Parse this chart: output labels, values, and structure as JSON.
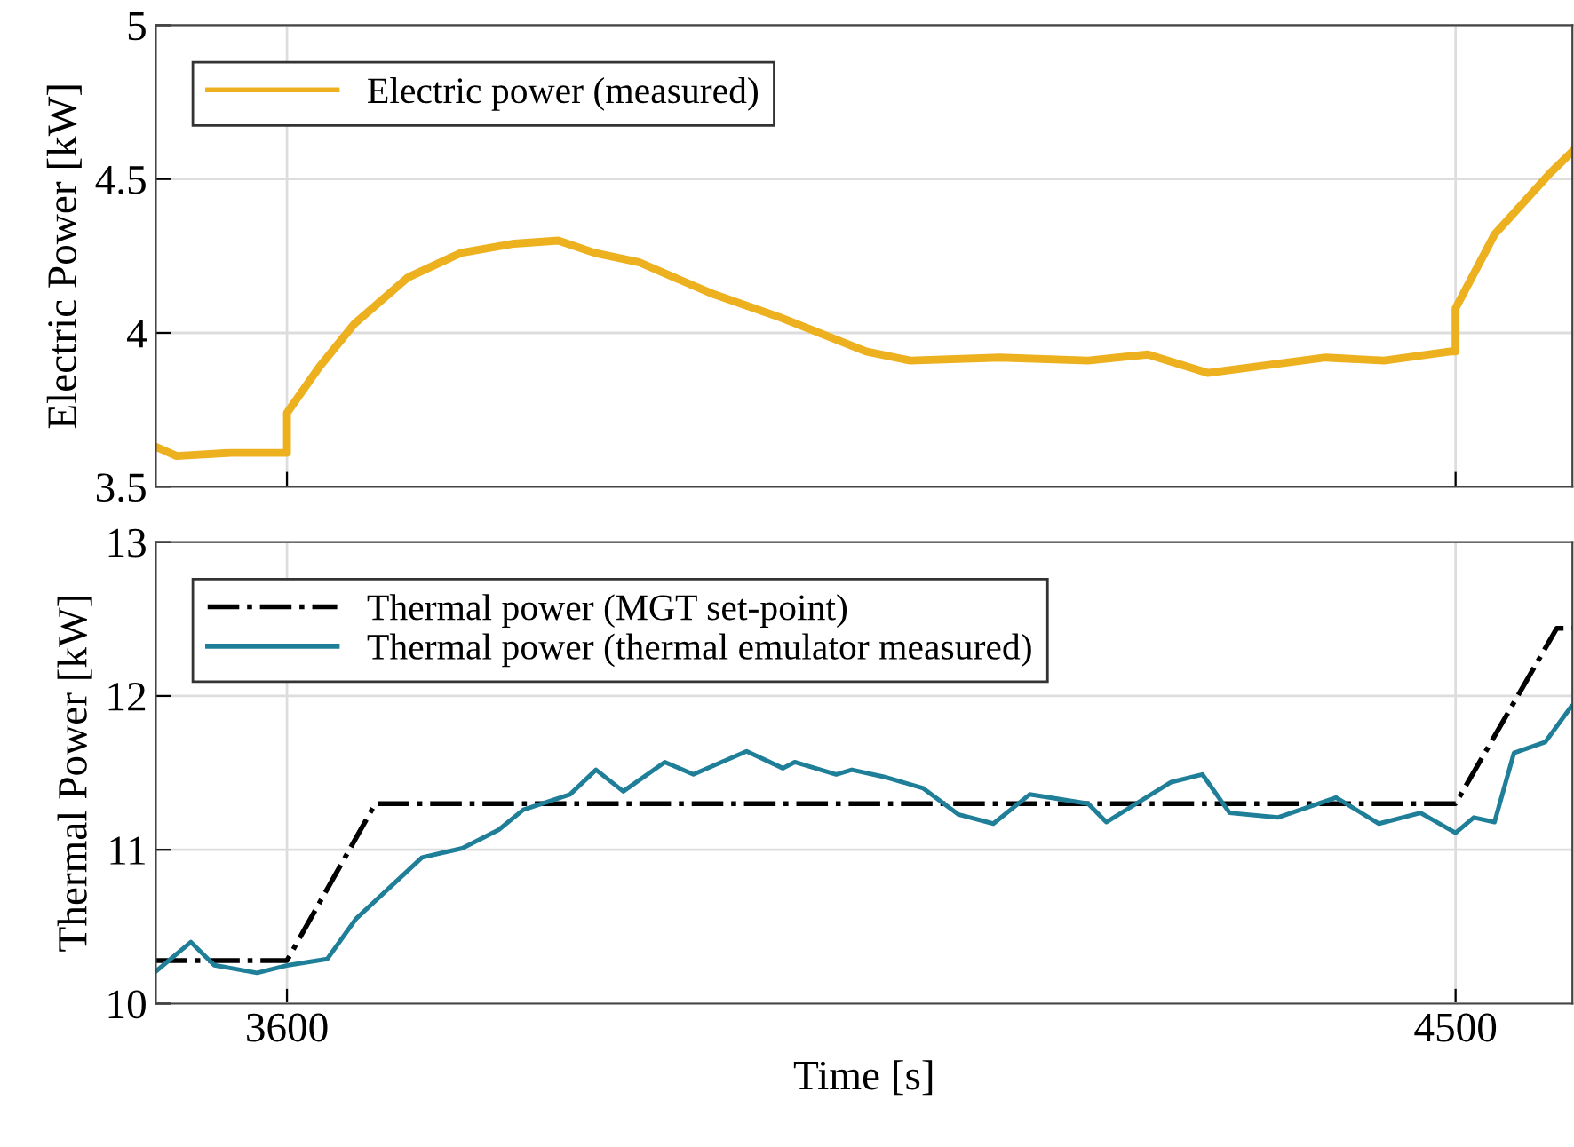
{
  "chart_data": [
    {
      "type": "line",
      "ylabel": "Electric Power [kW]",
      "xlim": [
        3499,
        4590
      ],
      "xticks": [
        3600,
        4500
      ],
      "ylim": [
        3.5,
        5
      ],
      "yticks": [
        3.5,
        4,
        4.5,
        5
      ],
      "grid": true,
      "legend": "top left",
      "tick_labels": "y",
      "series": [
        {
          "name": "Electric power (measured)",
          "color": "#edb120",
          "line_style": "solid",
          "x": [
            3499,
            3515,
            3556,
            3597,
            3600,
            3600,
            3625,
            3652,
            3693,
            3734,
            3775,
            3809,
            3837,
            3871,
            3926,
            3980,
            4046,
            4080,
            4149,
            4217,
            4263,
            4309,
            4400,
            4445,
            4496,
            4500,
            4500,
            4530,
            4573,
            4590
          ],
          "values": [
            3.63,
            3.6,
            3.61,
            3.61,
            3.61,
            3.74,
            3.89,
            4.03,
            4.18,
            4.26,
            4.29,
            4.3,
            4.26,
            4.23,
            4.13,
            4.05,
            3.94,
            3.91,
            3.92,
            3.91,
            3.93,
            3.87,
            3.92,
            3.91,
            3.94,
            3.94,
            4.08,
            4.32,
            4.52,
            4.59
          ]
        }
      ]
    },
    {
      "type": "line",
      "xlabel": "Time [s]",
      "ylabel": "Thermal Power [kW]",
      "xlim": [
        3499,
        4590
      ],
      "xticks": [
        3600,
        4500
      ],
      "ylim": [
        10,
        13
      ],
      "yticks": [
        10,
        11,
        12,
        13
      ],
      "grid": true,
      "legend": "top left",
      "series": [
        {
          "name": "Thermal power (MGT set-point)",
          "color": "#000000",
          "line_style": "dashdot",
          "x": [
            3499,
            3600,
            3668,
            4500,
            4578,
            4590
          ],
          "values": [
            10.28,
            10.28,
            11.3,
            11.3,
            12.44,
            12.44
          ]
        },
        {
          "name": "Thermal power (thermal emulator measured)",
          "color": "#1f7f99",
          "line_style": "solid",
          "x": [
            3499,
            3526,
            3544,
            3577,
            3601,
            3631,
            3653,
            3681,
            3704,
            3735,
            3763,
            3782,
            3818,
            3838,
            3859,
            3891,
            3913,
            3954,
            3982,
            3991,
            4023,
            4035,
            4062,
            4090,
            4117,
            4144,
            4172,
            4217,
            4231,
            4281,
            4305,
            4326,
            4363,
            4408,
            4441,
            4473,
            4500,
            4514,
            4530,
            4545,
            4569,
            4589
          ],
          "values": [
            10.21,
            10.4,
            10.25,
            10.2,
            10.25,
            10.29,
            10.55,
            10.77,
            10.95,
            11.01,
            11.13,
            11.26,
            11.36,
            11.52,
            11.38,
            11.57,
            11.49,
            11.64,
            11.53,
            11.57,
            11.49,
            11.52,
            11.47,
            11.4,
            11.23,
            11.17,
            11.36,
            11.3,
            11.18,
            11.44,
            11.49,
            11.24,
            11.21,
            11.34,
            11.17,
            11.24,
            11.11,
            11.21,
            11.18,
            11.63,
            11.7,
            11.93
          ]
        }
      ]
    }
  ]
}
